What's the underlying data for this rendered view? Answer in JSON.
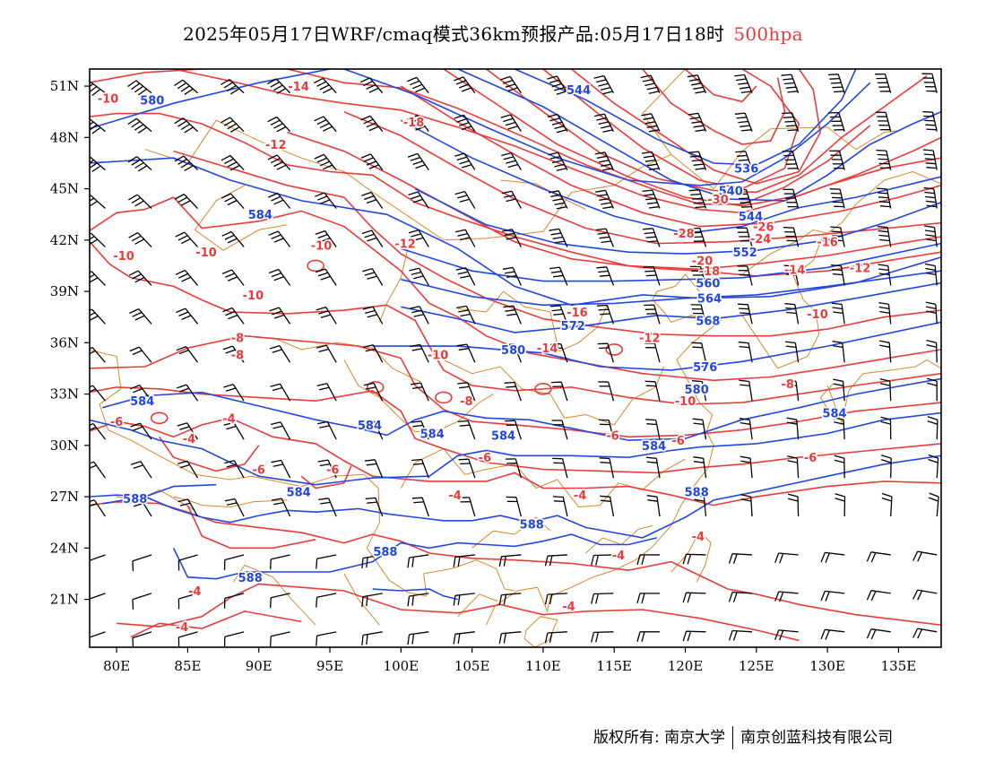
{
  "title": {
    "main": "2025年05月17日WRF/cmaq模式36km预报产品:05月17日18时",
    "level": "500hpa"
  },
  "colors": {
    "height_contour": "#2346e0",
    "temperature_contour": "#e83c3c",
    "boundary": "#d9882b",
    "wind_barb": "#000000",
    "level_text": "#e83c3c"
  },
  "axes": {
    "lat_ticks": [
      "51N",
      "48N",
      "45N",
      "42N",
      "39N",
      "36N",
      "33N",
      "30N",
      "27N",
      "24N",
      "21N"
    ],
    "lon_ticks": [
      "80E",
      "85E",
      "90E",
      "95E",
      "100E",
      "105E",
      "110E",
      "115E",
      "120E",
      "125E",
      "130E",
      "135E"
    ]
  },
  "height_labels": [
    {
      "text": "580",
      "lon": 82.5,
      "lat": 50.2
    },
    {
      "text": "544",
      "lon": 112.5,
      "lat": 50.8
    },
    {
      "text": "536",
      "lon": 124.3,
      "lat": 46.2
    },
    {
      "text": "540",
      "lon": 123.2,
      "lat": 44.9
    },
    {
      "text": "544",
      "lon": 124.6,
      "lat": 43.4
    },
    {
      "text": "552",
      "lon": 124.2,
      "lat": 41.3
    },
    {
      "text": "584",
      "lon": 90.1,
      "lat": 43.5
    },
    {
      "text": "560",
      "lon": 121.6,
      "lat": 39.5
    },
    {
      "text": "564",
      "lon": 121.7,
      "lat": 38.6
    },
    {
      "text": "568",
      "lon": 121.6,
      "lat": 37.3
    },
    {
      "text": "572",
      "lon": 112.1,
      "lat": 37.0
    },
    {
      "text": "580",
      "lon": 107.9,
      "lat": 35.6
    },
    {
      "text": "576",
      "lon": 121.4,
      "lat": 34.6
    },
    {
      "text": "580",
      "lon": 120.8,
      "lat": 33.3
    },
    {
      "text": "584",
      "lon": 81.8,
      "lat": 32.6
    },
    {
      "text": "584",
      "lon": 97.8,
      "lat": 31.2
    },
    {
      "text": "584",
      "lon": 102.2,
      "lat": 30.7
    },
    {
      "text": "584",
      "lon": 107.2,
      "lat": 30.6
    },
    {
      "text": "584",
      "lon": 117.8,
      "lat": 30.0
    },
    {
      "text": "584",
      "lon": 130.5,
      "lat": 31.9
    },
    {
      "text": "584",
      "lon": 92.8,
      "lat": 27.3
    },
    {
      "text": "588",
      "lon": 81.3,
      "lat": 26.9
    },
    {
      "text": "588",
      "lon": 109.2,
      "lat": 25.4
    },
    {
      "text": "588",
      "lon": 98.9,
      "lat": 23.8
    },
    {
      "text": "588",
      "lon": 89.4,
      "lat": 22.3
    },
    {
      "text": "588",
      "lon": 120.8,
      "lat": 27.3
    }
  ],
  "temp_labels": [
    {
      "text": "-10",
      "lon": 79.4,
      "lat": 50.3
    },
    {
      "text": "-14",
      "lon": 92.8,
      "lat": 51.0
    },
    {
      "text": "-12",
      "lon": 91.2,
      "lat": 47.6
    },
    {
      "text": "-18",
      "lon": 100.9,
      "lat": 48.9
    },
    {
      "text": "-30",
      "lon": 122.3,
      "lat": 44.4
    },
    {
      "text": "-26",
      "lon": 125.5,
      "lat": 42.8
    },
    {
      "text": "-28",
      "lon": 119.9,
      "lat": 42.4
    },
    {
      "text": "-24",
      "lon": 125.3,
      "lat": 42.1
    },
    {
      "text": "-20",
      "lon": 121.2,
      "lat": 40.8
    },
    {
      "text": "-18",
      "lon": 121.7,
      "lat": 40.2
    },
    {
      "text": "-16",
      "lon": 130.0,
      "lat": 41.9
    },
    {
      "text": "-14",
      "lon": 127.7,
      "lat": 40.3
    },
    {
      "text": "-12",
      "lon": 132.3,
      "lat": 40.4
    },
    {
      "text": "-10",
      "lon": 80.5,
      "lat": 41.1
    },
    {
      "text": "-10",
      "lon": 86.3,
      "lat": 41.3
    },
    {
      "text": "-10",
      "lon": 94.4,
      "lat": 41.7
    },
    {
      "text": "-12",
      "lon": 100.3,
      "lat": 41.8
    },
    {
      "text": "-10",
      "lon": 89.6,
      "lat": 38.8
    },
    {
      "text": "-16",
      "lon": 112.4,
      "lat": 37.8
    },
    {
      "text": "-14",
      "lon": 110.3,
      "lat": 35.7
    },
    {
      "text": "-12",
      "lon": 117.5,
      "lat": 36.3
    },
    {
      "text": "-10",
      "lon": 129.3,
      "lat": 37.7
    },
    {
      "text": "-8",
      "lon": 88.5,
      "lat": 36.3
    },
    {
      "text": "-8",
      "lon": 88.5,
      "lat": 35.3
    },
    {
      "text": "-10",
      "lon": 102.6,
      "lat": 35.3
    },
    {
      "text": "-8",
      "lon": 127.2,
      "lat": 33.6
    },
    {
      "text": "-10",
      "lon": 120.0,
      "lat": 32.6
    },
    {
      "text": "-8",
      "lon": 104.6,
      "lat": 32.6
    },
    {
      "text": "-6",
      "lon": 80.0,
      "lat": 31.4
    },
    {
      "text": "-4",
      "lon": 87.9,
      "lat": 31.6
    },
    {
      "text": "-4",
      "lon": 85.1,
      "lat": 30.4
    },
    {
      "text": "-6",
      "lon": 114.9,
      "lat": 30.6
    },
    {
      "text": "-6",
      "lon": 119.5,
      "lat": 30.3
    },
    {
      "text": "-6",
      "lon": 105.9,
      "lat": 29.3
    },
    {
      "text": "-6",
      "lon": 90.0,
      "lat": 28.6
    },
    {
      "text": "-6",
      "lon": 95.2,
      "lat": 28.6
    },
    {
      "text": "-6",
      "lon": 128.8,
      "lat": 29.3
    },
    {
      "text": "-4",
      "lon": 103.8,
      "lat": 27.1
    },
    {
      "text": "-4",
      "lon": 112.6,
      "lat": 27.1
    },
    {
      "text": "-4",
      "lon": 120.9,
      "lat": 24.7
    },
    {
      "text": "-4",
      "lon": 115.3,
      "lat": 23.6
    },
    {
      "text": "-4",
      "lon": 85.5,
      "lat": 21.5
    },
    {
      "text": "-4",
      "lon": 111.8,
      "lat": 20.6
    },
    {
      "text": "-4",
      "lon": 84.6,
      "lat": 19.4
    }
  ],
  "footer": {
    "copyright": "版权所有: 南京大学",
    "company": "南京创蓝科技有限公司"
  }
}
